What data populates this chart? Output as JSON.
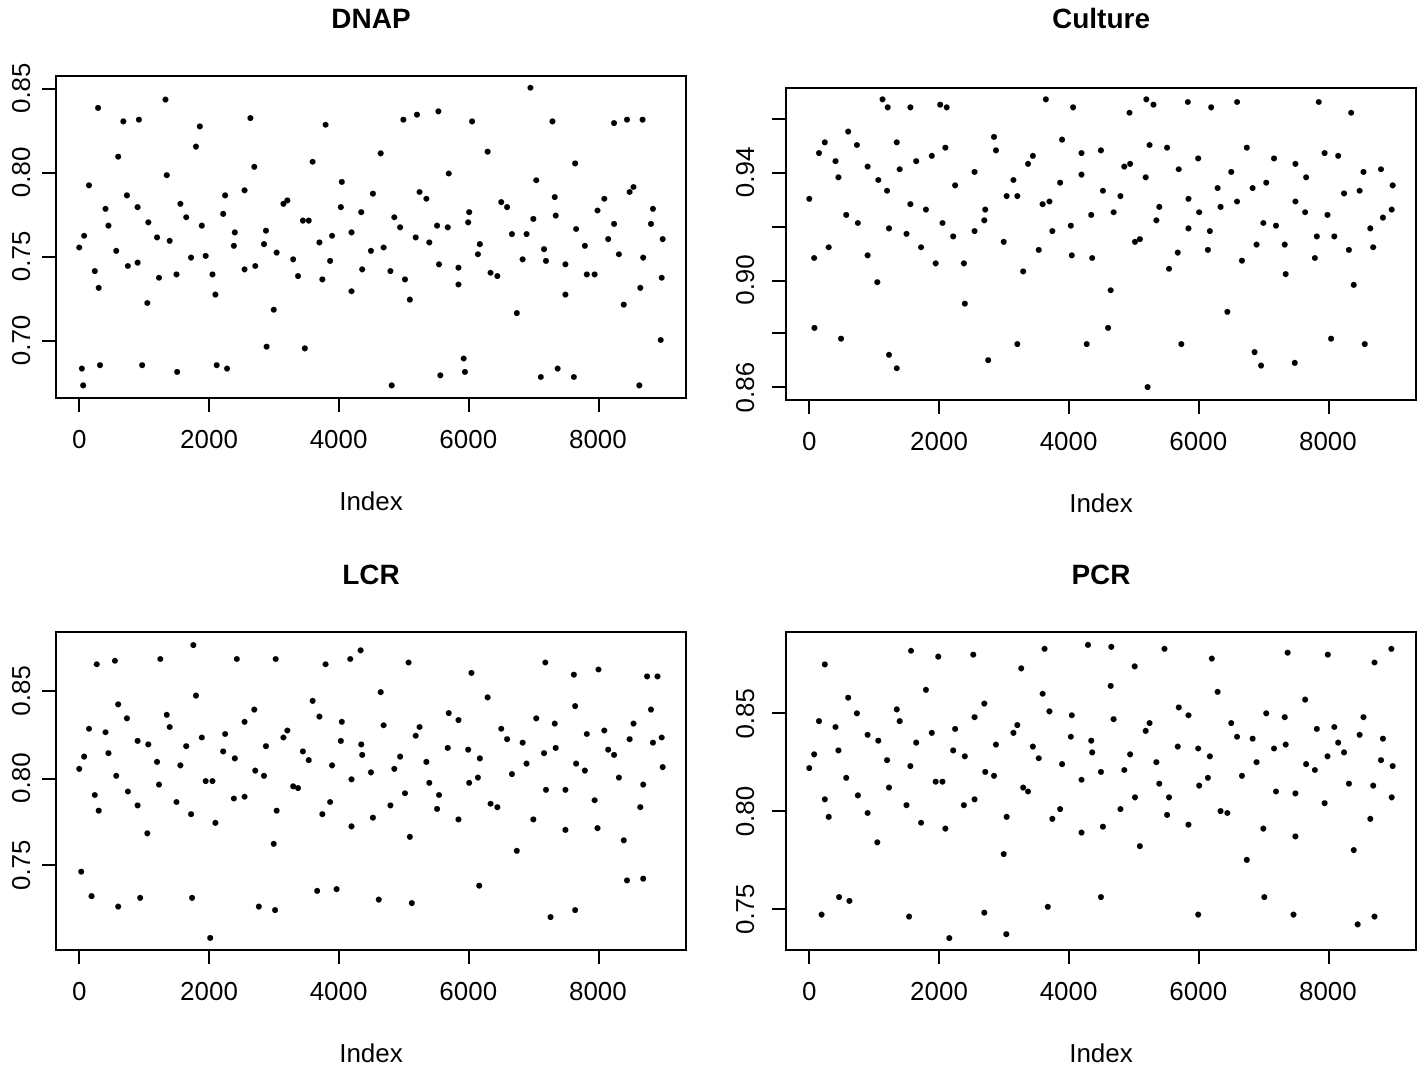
{
  "chart_data": [
    {
      "type": "scatter",
      "title": "DNAP",
      "xlabel": "Index",
      "color": "#000000",
      "marker": "circle",
      "xlim": [
        -359,
        9360
      ],
      "ylim": [
        0.6655,
        0.857
      ],
      "xticks": [
        0,
        2000,
        4000,
        6000,
        8000
      ],
      "yticks": [
        {
          "value": 0.7,
          "label": "0.70"
        },
        0.75,
        {
          "value": 0.8,
          "label": "0.80"
        },
        0.85
      ],
      "x": [
        0,
        150,
        300,
        450,
        600,
        750,
        900,
        1050,
        1200,
        1350,
        1500,
        1650,
        1800,
        1950,
        2100,
        2250,
        2400,
        2550,
        2700,
        2850,
        3000,
        3150,
        3300,
        3450,
        3600,
        3750,
        3900,
        4050,
        4200,
        4350,
        4500,
        4650,
        4800,
        4950,
        5100,
        5250,
        5400,
        5550,
        5700,
        5850,
        6000,
        6150,
        6300,
        6450,
        6600,
        6750,
        6900,
        7050,
        7200,
        7350,
        7500,
        7650,
        7800,
        7950,
        8100,
        8250,
        8400,
        8550,
        8700,
        8850,
        9000,
        290,
        1330,
        6960,
        680,
        920,
        1860,
        2640,
        3800,
        5000,
        5210,
        5540,
        6060,
        7300,
        8250,
        8450,
        8690,
        60,
        40,
        320,
        970,
        1510,
        2120,
        2280,
        2890,
        3480,
        4820,
        5570,
        5930,
        7120,
        7630,
        8640,
        8970,
        7380,
        5950,
        75,
        240,
        405,
        570,
        735,
        900,
        1065,
        1230,
        1395,
        1560,
        1725,
        1890,
        2055,
        2220,
        2385,
        2550,
        2715,
        2880,
        3045,
        3210,
        3375,
        3540,
        3705,
        3870,
        4035,
        4200,
        4365,
        4530,
        4695,
        4860,
        5025,
        5190,
        5355,
        5520,
        5685,
        5850,
        6015,
        6180,
        6345,
        6510,
        6675,
        6840,
        7005,
        7170,
        7335,
        7500,
        7665,
        7830,
        7995,
        8160,
        8325,
        8490,
        8655,
        8820,
        8985
      ],
      "values": [
        0.755,
        0.792,
        0.731,
        0.768,
        0.809,
        0.744,
        0.779,
        0.722,
        0.761,
        0.798,
        0.739,
        0.773,
        0.815,
        0.75,
        0.727,
        0.786,
        0.764,
        0.742,
        0.803,
        0.757,
        0.718,
        0.781,
        0.748,
        0.771,
        0.806,
        0.736,
        0.762,
        0.794,
        0.729,
        0.776,
        0.753,
        0.811,
        0.741,
        0.767,
        0.724,
        0.788,
        0.758,
        0.745,
        0.799,
        0.733,
        0.77,
        0.751,
        0.812,
        0.738,
        0.779,
        0.716,
        0.763,
        0.795,
        0.747,
        0.774,
        0.727,
        0.805,
        0.756,
        0.739,
        0.784,
        0.769,
        0.721,
        0.791,
        0.749,
        0.778,
        0.76,
        0.838,
        0.843,
        0.85,
        0.83,
        0.831,
        0.827,
        0.832,
        0.828,
        0.831,
        0.834,
        0.836,
        0.83,
        0.83,
        0.829,
        0.831,
        0.831,
        0.673,
        0.683,
        0.685,
        0.685,
        0.681,
        0.685,
        0.683,
        0.696,
        0.695,
        0.673,
        0.679,
        0.689,
        0.678,
        0.678,
        0.673,
        0.7,
        0.683,
        0.681,
        0.762,
        0.741,
        0.778,
        0.753,
        0.786,
        0.746,
        0.77,
        0.737,
        0.759,
        0.781,
        0.749,
        0.768,
        0.739,
        0.775,
        0.756,
        0.789,
        0.744,
        0.765,
        0.752,
        0.783,
        0.738,
        0.771,
        0.758,
        0.747,
        0.779,
        0.764,
        0.742,
        0.787,
        0.755,
        0.773,
        0.736,
        0.761,
        0.784,
        0.768,
        0.767,
        0.743,
        0.776,
        0.757,
        0.74,
        0.782,
        0.763,
        0.748,
        0.772,
        0.754,
        0.785,
        0.745,
        0.766,
        0.739,
        0.777,
        0.76,
        0.751,
        0.788,
        0.731,
        0.769,
        0.737
      ]
    },
    {
      "type": "scatter",
      "title": "Culture",
      "xlabel": "Index",
      "color": "#000000",
      "marker": "circle",
      "xlim": [
        -359,
        9360
      ],
      "ylim": [
        0.8552,
        0.9712
      ],
      "xticks": [
        0,
        2000,
        4000,
        6000,
        8000
      ],
      "yticks": [
        0.86,
        {
          "value": 0.88,
          "label": null
        },
        {
          "value": 0.9,
          "label": "0.90"
        },
        {
          "value": 0.92,
          "label": null
        },
        0.94,
        {
          "value": 0.96,
          "label": null
        }
      ],
      "x": [
        0,
        150,
        300,
        450,
        600,
        750,
        900,
        1050,
        1200,
        1350,
        1500,
        1650,
        1800,
        1950,
        2100,
        2250,
        2400,
        2550,
        2700,
        2850,
        3000,
        3150,
        3300,
        3450,
        3600,
        3750,
        3900,
        4050,
        4200,
        4350,
        4500,
        4650,
        4800,
        4950,
        5100,
        5250,
        5400,
        5550,
        5700,
        5850,
        6000,
        6150,
        6300,
        6450,
        6600,
        6750,
        6900,
        7050,
        7200,
        7350,
        7500,
        7650,
        7800,
        7950,
        8100,
        8250,
        8400,
        8550,
        8700,
        8850,
        9000,
        1130,
        5200,
        5310,
        1210,
        1560,
        2020,
        2120,
        3650,
        4070,
        4940,
        5840,
        6200,
        6600,
        7860,
        8360,
        5220,
        1230,
        1350,
        3210,
        2760,
        4280,
        6870,
        6970,
        7490,
        8570,
        80,
        490,
        5740,
        4610,
        8050,
        75,
        240,
        405,
        570,
        735,
        900,
        1065,
        1230,
        1395,
        1560,
        1725,
        1890,
        2055,
        2220,
        2385,
        2550,
        2715,
        2880,
        3045,
        3210,
        3375,
        3540,
        3705,
        3870,
        4035,
        4200,
        4365,
        4530,
        4695,
        4860,
        5025,
        5190,
        5355,
        5520,
        5685,
        5850,
        6015,
        6180,
        6345,
        6510,
        6675,
        6840,
        7005,
        7170,
        7335,
        7500,
        7665,
        7830,
        7995,
        8160,
        8325,
        8490,
        8655,
        8820,
        8985
      ],
      "values": [
        0.93,
        0.947,
        0.912,
        0.938,
        0.955,
        0.921,
        0.942,
        0.899,
        0.933,
        0.951,
        0.917,
        0.944,
        0.926,
        0.906,
        0.949,
        0.935,
        0.891,
        0.94,
        0.922,
        0.953,
        0.914,
        0.937,
        0.903,
        0.946,
        0.928,
        0.918,
        0.952,
        0.909,
        0.939,
        0.924,
        0.948,
        0.896,
        0.931,
        0.943,
        0.915,
        0.95,
        0.927,
        0.904,
        0.941,
        0.919,
        0.945,
        0.911,
        0.934,
        0.888,
        0.929,
        0.949,
        0.913,
        0.936,
        0.92,
        0.902,
        0.943,
        0.925,
        0.908,
        0.947,
        0.916,
        0.932,
        0.898,
        0.94,
        0.912,
        0.923,
        0.935,
        0.967,
        0.967,
        0.965,
        0.964,
        0.964,
        0.965,
        0.964,
        0.967,
        0.964,
        0.962,
        0.966,
        0.964,
        0.966,
        0.966,
        0.962,
        0.86,
        0.872,
        0.867,
        0.876,
        0.87,
        0.876,
        0.873,
        0.868,
        0.869,
        0.876,
        0.882,
        0.878,
        0.876,
        0.882,
        0.878,
        0.908,
        0.951,
        0.944,
        0.924,
        0.95,
        0.909,
        0.937,
        0.919,
        0.941,
        0.928,
        0.912,
        0.946,
        0.921,
        0.916,
        0.906,
        0.918,
        0.926,
        0.948,
        0.931,
        0.931,
        0.943,
        0.911,
        0.929,
        0.936,
        0.92,
        0.947,
        0.908,
        0.933,
        0.925,
        0.942,
        0.914,
        0.938,
        0.922,
        0.949,
        0.91,
        0.93,
        0.925,
        0.918,
        0.927,
        0.94,
        0.907,
        0.934,
        0.921,
        0.945,
        0.913,
        0.929,
        0.938,
        0.916,
        0.924,
        0.946,
        0.911,
        0.933,
        0.919,
        0.941,
        0.926
      ]
    },
    {
      "type": "scatter",
      "title": "LCR",
      "xlabel": "Index",
      "color": "#000000",
      "marker": "circle",
      "xlim": [
        -359,
        9360
      ],
      "ylim": [
        0.7011,
        0.8835
      ],
      "xticks": [
        0,
        2000,
        4000,
        6000,
        8000
      ],
      "yticks": [
        0.75,
        {
          "value": 0.8,
          "label": "0.80"
        },
        0.85
      ],
      "x": [
        0,
        150,
        300,
        450,
        600,
        750,
        900,
        1050,
        1200,
        1350,
        1500,
        1650,
        1800,
        1950,
        2100,
        2250,
        2400,
        2550,
        2700,
        2850,
        3000,
        3150,
        3300,
        3450,
        3600,
        3750,
        3900,
        4050,
        4200,
        4350,
        4500,
        4650,
        4800,
        4950,
        5100,
        5250,
        5400,
        5550,
        5700,
        5850,
        6000,
        6150,
        6300,
        6450,
        6600,
        6750,
        6900,
        7050,
        7200,
        7350,
        7500,
        7650,
        7800,
        7950,
        8100,
        8250,
        8400,
        8550,
        8700,
        8850,
        9000,
        1760,
        2430,
        1250,
        270,
        550,
        3030,
        3800,
        4180,
        4340,
        5080,
        7190,
        8010,
        6050,
        7630,
        8760,
        8920,
        2020,
        7270,
        600,
        2770,
        3020,
        190,
        940,
        1740,
        3670,
        4620,
        5130,
        6170,
        7650,
        8450,
        8700,
        30,
        3970,
        75,
        240,
        405,
        570,
        735,
        900,
        1065,
        1230,
        1395,
        1560,
        1725,
        1890,
        2055,
        2220,
        2385,
        2550,
        2715,
        2880,
        3045,
        3210,
        3375,
        3540,
        3705,
        3870,
        4035,
        4200,
        4365,
        4530,
        4695,
        4860,
        5025,
        5190,
        5355,
        5520,
        5685,
        5850,
        6015,
        6180,
        6345,
        6510,
        6675,
        6840,
        7005,
        7170,
        7335,
        7500,
        7665,
        7830,
        7995,
        8160,
        8325,
        8490,
        8655,
        8820,
        8985
      ],
      "values": [
        0.805,
        0.828,
        0.781,
        0.814,
        0.842,
        0.792,
        0.821,
        0.768,
        0.809,
        0.836,
        0.786,
        0.818,
        0.847,
        0.798,
        0.774,
        0.825,
        0.811,
        0.789,
        0.839,
        0.801,
        0.762,
        0.823,
        0.795,
        0.815,
        0.844,
        0.779,
        0.807,
        0.832,
        0.772,
        0.819,
        0.803,
        0.849,
        0.784,
        0.812,
        0.766,
        0.829,
        0.797,
        0.79,
        0.837,
        0.776,
        0.816,
        0.8,
        0.846,
        0.783,
        0.822,
        0.758,
        0.808,
        0.834,
        0.793,
        0.817,
        0.77,
        0.841,
        0.804,
        0.787,
        0.827,
        0.813,
        0.764,
        0.831,
        0.796,
        0.82,
        0.806,
        0.876,
        0.868,
        0.868,
        0.865,
        0.867,
        0.868,
        0.865,
        0.868,
        0.873,
        0.866,
        0.866,
        0.862,
        0.86,
        0.859,
        0.858,
        0.858,
        0.708,
        0.72,
        0.726,
        0.726,
        0.724,
        0.732,
        0.731,
        0.731,
        0.735,
        0.73,
        0.728,
        0.738,
        0.724,
        0.741,
        0.742,
        0.746,
        0.736,
        0.812,
        0.79,
        0.826,
        0.801,
        0.834,
        0.784,
        0.819,
        0.796,
        0.829,
        0.807,
        0.779,
        0.823,
        0.798,
        0.815,
        0.788,
        0.832,
        0.804,
        0.818,
        0.781,
        0.827,
        0.794,
        0.81,
        0.835,
        0.786,
        0.821,
        0.799,
        0.813,
        0.777,
        0.83,
        0.805,
        0.791,
        0.824,
        0.809,
        0.782,
        0.817,
        0.833,
        0.797,
        0.811,
        0.785,
        0.828,
        0.802,
        0.82,
        0.776,
        0.814,
        0.831,
        0.793,
        0.808,
        0.825,
        0.771,
        0.816,
        0.8,
        0.822,
        0.783,
        0.839,
        0.823
      ]
    },
    {
      "type": "scatter",
      "title": "PCR",
      "xlabel": "Index",
      "color": "#000000",
      "marker": "circle",
      "xlim": [
        -359,
        9360
      ],
      "ylim": [
        0.7289,
        0.8916
      ],
      "xticks": [
        0,
        2000,
        4000,
        6000,
        8000
      ],
      "yticks": [
        0.75,
        {
          "value": 0.8,
          "label": "0.80"
        },
        0.85
      ],
      "x": [
        0,
        150,
        300,
        450,
        600,
        750,
        900,
        1050,
        1200,
        1350,
        1500,
        1650,
        1800,
        1950,
        2100,
        2250,
        2400,
        2550,
        2700,
        2850,
        3000,
        3150,
        3300,
        3450,
        3600,
        3750,
        3900,
        4050,
        4200,
        4350,
        4500,
        4650,
        4800,
        4950,
        5100,
        5250,
        5400,
        5550,
        5700,
        5850,
        6000,
        6150,
        6300,
        6450,
        6600,
        6750,
        6900,
        7050,
        7200,
        7350,
        7500,
        7650,
        7800,
        7950,
        8100,
        8250,
        8400,
        8550,
        8700,
        8850,
        9000,
        4300,
        4660,
        3630,
        8980,
        1570,
        2530,
        1990,
        5480,
        6210,
        7380,
        8000,
        240,
        3270,
        8720,
        5020,
        2160,
        3040,
        190,
        1540,
        2700,
        3680,
        6000,
        7470,
        8460,
        8720,
        460,
        4500,
        7020,
        620,
        75,
        240,
        405,
        570,
        735,
        900,
        1065,
        1230,
        1395,
        1560,
        1725,
        1890,
        2055,
        2220,
        2385,
        2550,
        2715,
        2880,
        3045,
        3210,
        3375,
        3540,
        3705,
        3870,
        4035,
        4200,
        4365,
        4530,
        4695,
        4860,
        5025,
        5190,
        5355,
        5520,
        5685,
        5850,
        6015,
        6180,
        6345,
        6510,
        6675,
        6840,
        7005,
        7170,
        7335,
        7500,
        7665,
        7830,
        7995,
        8160,
        8325,
        8490,
        8655,
        8820,
        8985
      ],
      "values": [
        0.822,
        0.846,
        0.797,
        0.831,
        0.858,
        0.808,
        0.839,
        0.784,
        0.826,
        0.852,
        0.803,
        0.835,
        0.862,
        0.815,
        0.791,
        0.842,
        0.828,
        0.806,
        0.855,
        0.818,
        0.778,
        0.84,
        0.812,
        0.833,
        0.86,
        0.796,
        0.824,
        0.849,
        0.789,
        0.836,
        0.82,
        0.864,
        0.801,
        0.829,
        0.782,
        0.845,
        0.814,
        0.807,
        0.853,
        0.793,
        0.832,
        0.817,
        0.861,
        0.799,
        0.838,
        0.775,
        0.825,
        0.85,
        0.81,
        0.834,
        0.787,
        0.857,
        0.821,
        0.804,
        0.843,
        0.83,
        0.78,
        0.848,
        0.813,
        0.837,
        0.823,
        0.885,
        0.884,
        0.883,
        0.883,
        0.882,
        0.88,
        0.879,
        0.883,
        0.878,
        0.881,
        0.88,
        0.875,
        0.873,
        0.876,
        0.874,
        0.735,
        0.737,
        0.747,
        0.746,
        0.748,
        0.751,
        0.747,
        0.747,
        0.742,
        0.746,
        0.756,
        0.756,
        0.756,
        0.754,
        0.829,
        0.806,
        0.843,
        0.817,
        0.85,
        0.799,
        0.836,
        0.812,
        0.846,
        0.823,
        0.794,
        0.84,
        0.815,
        0.831,
        0.803,
        0.848,
        0.82,
        0.834,
        0.797,
        0.844,
        0.81,
        0.827,
        0.851,
        0.801,
        0.838,
        0.816,
        0.83,
        0.792,
        0.847,
        0.821,
        0.807,
        0.841,
        0.825,
        0.798,
        0.833,
        0.849,
        0.813,
        0.828,
        0.8,
        0.845,
        0.818,
        0.837,
        0.791,
        0.832,
        0.848,
        0.809,
        0.824,
        0.842,
        0.828,
        0.835,
        0.814,
        0.839,
        0.796,
        0.826,
        0.807
      ]
    }
  ]
}
